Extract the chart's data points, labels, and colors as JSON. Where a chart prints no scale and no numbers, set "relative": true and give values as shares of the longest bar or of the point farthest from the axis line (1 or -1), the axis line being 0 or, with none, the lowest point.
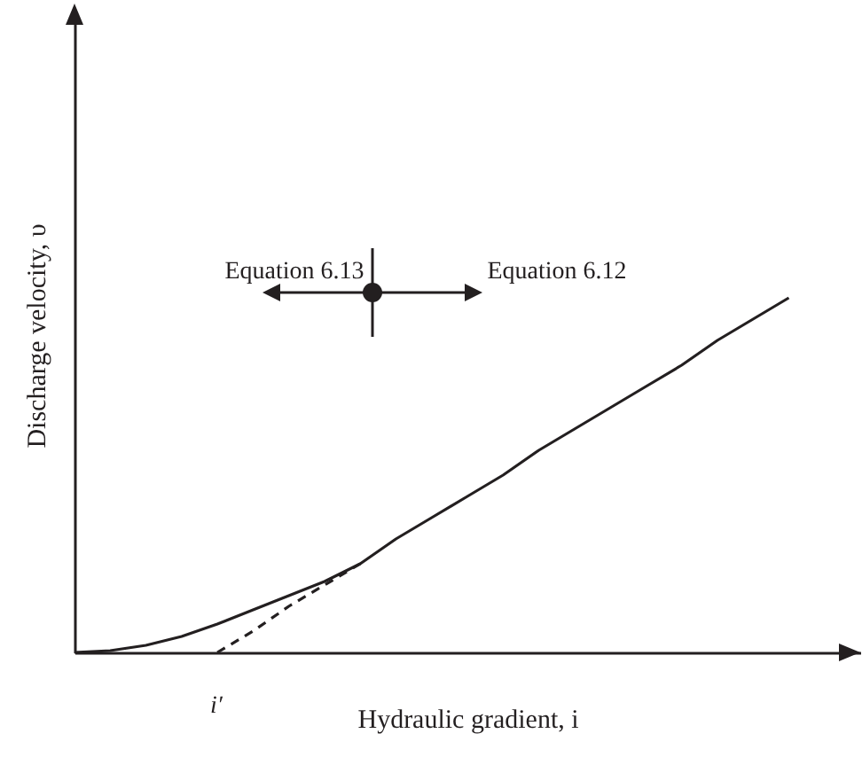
{
  "chart_data": {
    "type": "line",
    "relative": true,
    "xlabel": "Hydraulic gradient, i",
    "ylabel": "Discharge velocity, υ",
    "categories": [
      null,
      null,
      null,
      null,
      null,
      null,
      null,
      null,
      null,
      null,
      null,
      null,
      null,
      null,
      null,
      null,
      null,
      null,
      null,
      null,
      null,
      null,
      null
    ],
    "series": [
      {
        "color": "#231f20",
        "line_style": "solid",
        "values": [
          0,
          0.005,
          0.02,
          0.045,
          0.08,
          0.12,
          0.16,
          0.2,
          0.25,
          0.32,
          0.38,
          0.44,
          0.5,
          0.57,
          0.63,
          0.69,
          0.75,
          0.81,
          0.88,
          0.94,
          1,
          null,
          null
        ]
      },
      {
        "color": "#231f20",
        "line_style": "dashed",
        "values": [
          null,
          null,
          null,
          null,
          0,
          0.06,
          0.13,
          0.19,
          0.25,
          null,
          null,
          null,
          null,
          null,
          null,
          null,
          null,
          null,
          null,
          null,
          null,
          null,
          null
        ]
      }
    ],
    "annotations": [
      "Equation 6.13",
      "Equation 6.12",
      "i′"
    ],
    "grid": false
  }
}
